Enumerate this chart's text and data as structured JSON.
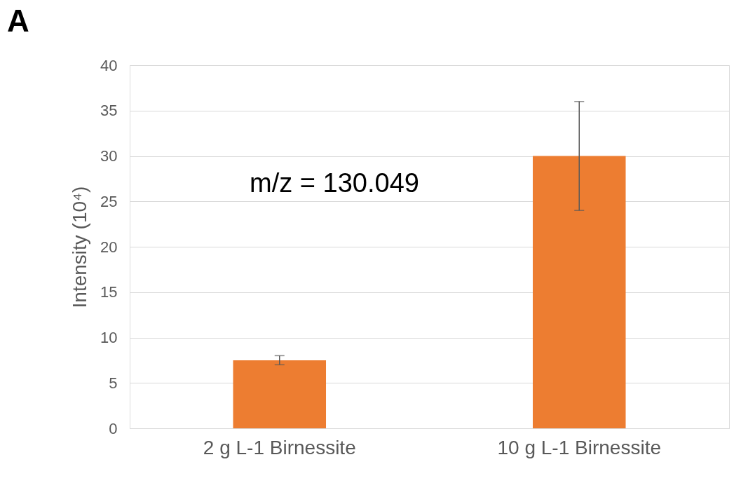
{
  "chart_data": {
    "type": "bar",
    "title": "A",
    "ylabel": "Intensity (10⁴)",
    "categories": [
      "2 g L-1 Birnessite",
      "10 g L-1 Birnessite"
    ],
    "values": [
      7.5,
      30
    ],
    "errors": [
      0.5,
      6
    ],
    "color": "#ed7d31",
    "ylim": [
      0,
      40
    ],
    "yticks": [
      0,
      5,
      10,
      15,
      20,
      25,
      30,
      35,
      40
    ],
    "grid": "y",
    "annotations": [
      "m/z = 130.049"
    ]
  }
}
